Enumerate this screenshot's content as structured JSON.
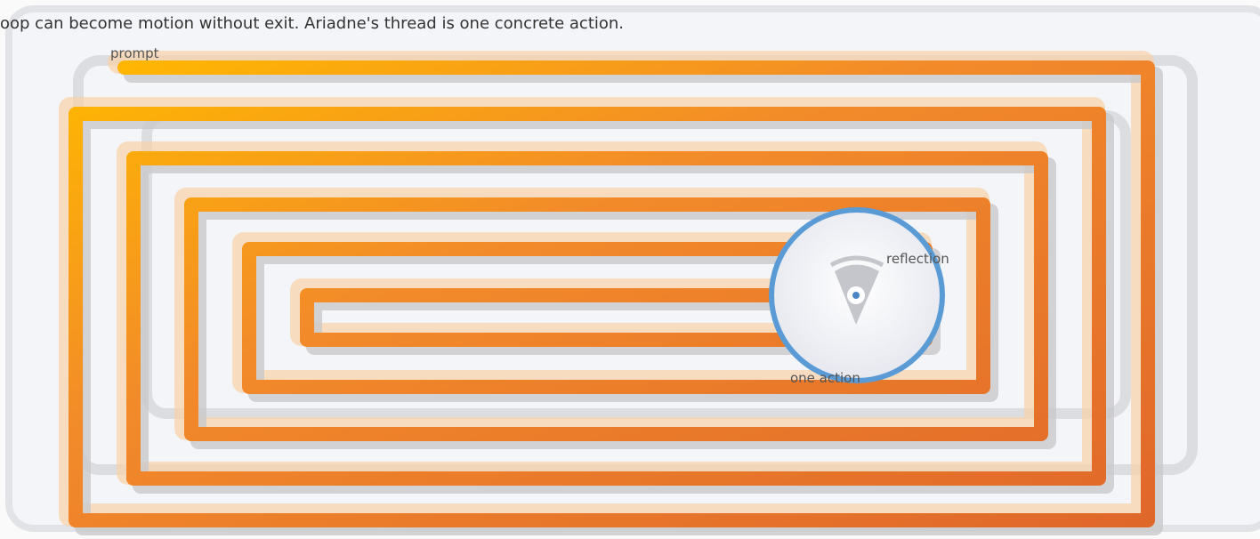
{
  "caption": "oop can become motion without exit. Ariadne's thread is one concrete action.",
  "labels": {
    "start": "prompt",
    "center": "reflection",
    "exit": "one action"
  }
}
